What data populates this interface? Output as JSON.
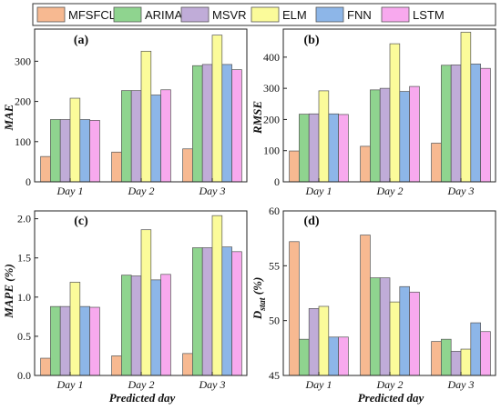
{
  "legend": {
    "items": [
      {
        "label": "MFSFCL",
        "color": "#f7b991"
      },
      {
        "label": "ARIMA",
        "color": "#8fd48f"
      },
      {
        "label": "MSVR",
        "color": "#c0acd8"
      },
      {
        "label": "ELM",
        "color": "#fbfb9a"
      },
      {
        "label": "FNN",
        "color": "#8db6e8"
      },
      {
        "label": "LSTM",
        "color": "#f8a9ee"
      }
    ]
  },
  "chart_data": [
    {
      "type": "bar",
      "panel_tag": "(a)",
      "categories": [
        "Day 1",
        "Day 2",
        "Day 3"
      ],
      "series": [
        {
          "name": "MFSFCL",
          "values": [
            63,
            74,
            82
          ]
        },
        {
          "name": "ARIMA",
          "values": [
            155,
            227,
            289
          ]
        },
        {
          "name": "MSVR",
          "values": [
            155,
            227,
            292
          ]
        },
        {
          "name": "ELM",
          "values": [
            208,
            325,
            365
          ]
        },
        {
          "name": "FNN",
          "values": [
            155,
            216,
            292
          ]
        },
        {
          "name": "LSTM",
          "values": [
            153,
            229,
            279
          ]
        }
      ],
      "ylabel": "MAE",
      "xlabel": "",
      "ylim": [
        0,
        380
      ],
      "yticks": [
        0,
        100,
        200,
        300
      ],
      "grid": false
    },
    {
      "type": "bar",
      "panel_tag": "(b)",
      "categories": [
        "Day 1",
        "Day 2",
        "Day 3"
      ],
      "series": [
        {
          "name": "MFSFCL",
          "values": [
            99,
            114,
            124
          ]
        },
        {
          "name": "ARIMA",
          "values": [
            217,
            295,
            374
          ]
        },
        {
          "name": "MSVR",
          "values": [
            218,
            300,
            375
          ]
        },
        {
          "name": "ELM",
          "values": [
            292,
            443,
            480
          ]
        },
        {
          "name": "FNN",
          "values": [
            218,
            290,
            378
          ]
        },
        {
          "name": "LSTM",
          "values": [
            216,
            306,
            364
          ]
        }
      ],
      "ylabel": "RMSE",
      "xlabel": "",
      "ylim": [
        0,
        490
      ],
      "yticks": [
        0,
        100,
        200,
        300,
        400
      ],
      "grid": false
    },
    {
      "type": "bar",
      "panel_tag": "(c)",
      "categories": [
        "Day 1",
        "Day 2",
        "Day 3"
      ],
      "series": [
        {
          "name": "MFSFCL",
          "values": [
            0.22,
            0.25,
            0.28
          ]
        },
        {
          "name": "ARIMA",
          "values": [
            0.88,
            1.28,
            1.63
          ]
        },
        {
          "name": "MSVR",
          "values": [
            0.88,
            1.27,
            1.63
          ]
        },
        {
          "name": "ELM",
          "values": [
            1.19,
            1.86,
            2.04
          ]
        },
        {
          "name": "FNN",
          "values": [
            0.88,
            1.22,
            1.64
          ]
        },
        {
          "name": "LSTM",
          "values": [
            0.87,
            1.29,
            1.58
          ]
        }
      ],
      "ylabel": "MAPE (%)",
      "xlabel": "Predicted day",
      "ylim": [
        0,
        2.1
      ],
      "yticks": [
        "0.0",
        "0.5",
        "1.0",
        "1.5",
        "2.0"
      ],
      "grid": false
    },
    {
      "type": "bar",
      "panel_tag": "(d)",
      "categories": [
        "Day 1",
        "Day 2",
        "Day 3"
      ],
      "series": [
        {
          "name": "MFSFCL",
          "values": [
            57.2,
            57.8,
            48.1
          ]
        },
        {
          "name": "ARIMA",
          "values": [
            48.3,
            53.9,
            48.3
          ]
        },
        {
          "name": "MSVR",
          "values": [
            51.1,
            53.9,
            47.2
          ]
        },
        {
          "name": "ELM",
          "values": [
            51.3,
            51.7,
            47.4
          ]
        },
        {
          "name": "FNN",
          "values": [
            48.5,
            53.1,
            49.8
          ]
        },
        {
          "name": "LSTM",
          "values": [
            48.5,
            52.6,
            49.0
          ]
        }
      ],
      "ylabel_main": "D",
      "ylabel_sub": "stat",
      "ylabel_suffix": " (%)",
      "xlabel": "Predicted day",
      "ylim": [
        45,
        60
      ],
      "yticks": [
        45,
        50,
        55,
        60
      ],
      "grid": false
    }
  ]
}
